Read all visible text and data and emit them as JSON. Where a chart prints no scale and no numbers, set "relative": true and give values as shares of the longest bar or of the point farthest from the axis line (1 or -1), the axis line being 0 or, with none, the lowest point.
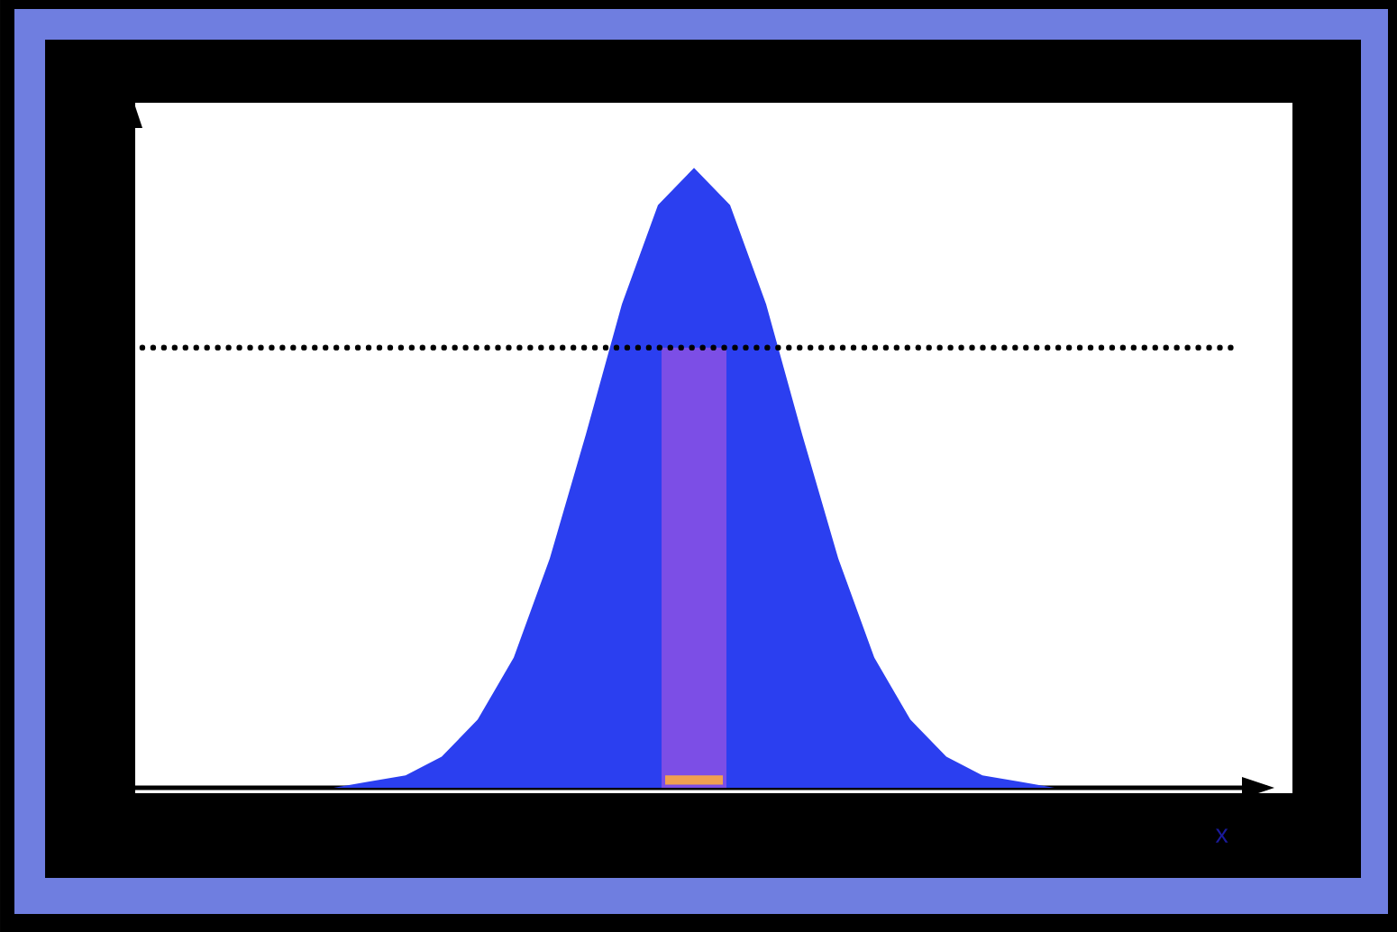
{
  "chart_data": {
    "type": "area",
    "relative": true,
    "xlabel": "x",
    "categories": [
      null,
      null,
      null,
      null,
      null,
      null,
      null,
      null,
      null,
      null,
      null,
      null,
      null,
      null,
      null,
      null,
      null,
      null,
      null,
      null,
      null,
      null,
      null,
      null,
      null,
      null,
      null,
      null,
      null,
      null,
      null
    ],
    "series": [
      {
        "color": "#2b3ff0",
        "values": [
          0,
          0,
          0,
          0,
          0,
          0,
          0.01,
          0.02,
          0.05,
          0.11,
          0.21,
          0.37,
          0.57,
          0.78,
          0.94,
          1,
          0.94,
          0.78,
          0.57,
          0.37,
          0.21,
          0.11,
          0.05,
          0.02,
          0.01,
          0,
          0,
          0,
          0,
          0,
          0
        ]
      }
    ],
    "ref_lines": [
      {
        "axis": "y",
        "value": 0.71,
        "line_style": "dotted",
        "color": "#000000"
      }
    ]
  }
}
